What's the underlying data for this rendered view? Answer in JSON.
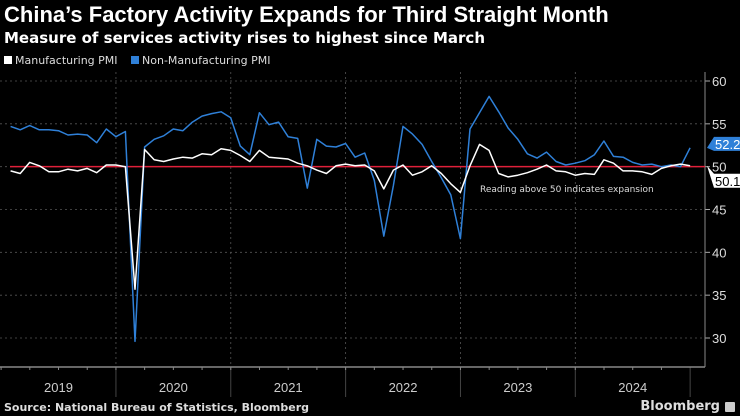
{
  "title": "China’s Factory Activity Expands for Third Straight Month",
  "subtitle": "Measure of services activity rises to highest since March",
  "source": "Source: National Bureau of Statistics, Bloomberg",
  "brand": "Bloomberg",
  "chart_data": {
    "type": "line",
    "title": "China’s Factory Activity Expands for Third Straight Month",
    "x_start": "2019-01",
    "x_end": "2024-12",
    "frequency": "monthly",
    "year_labels": [
      "2019",
      "2020",
      "2021",
      "2022",
      "2023",
      "2024"
    ],
    "ylim": [
      27,
      61
    ],
    "yticks": [
      "30",
      "35",
      "40",
      "45",
      "50",
      "55",
      "60"
    ],
    "grid": true,
    "legend_position": "top-left",
    "reference_line": {
      "value": 50,
      "color": "#e0203a"
    },
    "annotation": "Reading above 50 indicates expansion",
    "series": [
      {
        "name": "Manufacturing PMI",
        "color": "#ffffff",
        "last_label": "50.1",
        "values": [
          49.5,
          49.2,
          50.5,
          50.1,
          49.4,
          49.4,
          49.7,
          49.5,
          49.8,
          49.3,
          50.2,
          50.2,
          50.0,
          35.7,
          52.0,
          50.8,
          50.6,
          50.9,
          51.1,
          51.0,
          51.5,
          51.4,
          52.1,
          51.9,
          51.3,
          50.6,
          51.9,
          51.1,
          51.0,
          50.9,
          50.4,
          50.1,
          49.6,
          49.2,
          50.1,
          50.3,
          50.1,
          50.2,
          49.5,
          47.4,
          49.6,
          50.2,
          49.0,
          49.4,
          50.1,
          49.2,
          48.0,
          47.0,
          50.1,
          52.6,
          51.9,
          49.2,
          48.8,
          49.0,
          49.3,
          49.7,
          50.2,
          49.5,
          49.4,
          49.0,
          49.2,
          49.1,
          50.8,
          50.4,
          49.5,
          49.5,
          49.4,
          49.1,
          49.8,
          50.1,
          50.3,
          50.1
        ]
      },
      {
        "name": "Non-Manufacturing PMI",
        "color": "#2f80d8",
        "last_label": "52.2",
        "values": [
          54.7,
          54.3,
          54.8,
          54.3,
          54.3,
          54.2,
          53.7,
          53.8,
          53.7,
          52.8,
          54.4,
          53.5,
          54.1,
          29.6,
          52.3,
          53.2,
          53.6,
          54.4,
          54.2,
          55.2,
          55.9,
          56.2,
          56.4,
          55.7,
          52.4,
          51.4,
          56.3,
          54.9,
          55.2,
          53.5,
          53.3,
          47.5,
          53.2,
          52.4,
          52.3,
          52.7,
          51.1,
          51.6,
          48.4,
          41.9,
          47.8,
          54.7,
          53.8,
          52.6,
          50.6,
          48.7,
          46.7,
          41.6,
          54.4,
          56.3,
          58.2,
          56.4,
          54.5,
          53.2,
          51.5,
          51.0,
          51.7,
          50.6,
          50.2,
          50.4,
          50.7,
          51.4,
          53.0,
          51.2,
          51.1,
          50.5,
          50.2,
          50.3,
          50.0,
          50.2,
          50.0,
          52.2
        ]
      }
    ]
  }
}
